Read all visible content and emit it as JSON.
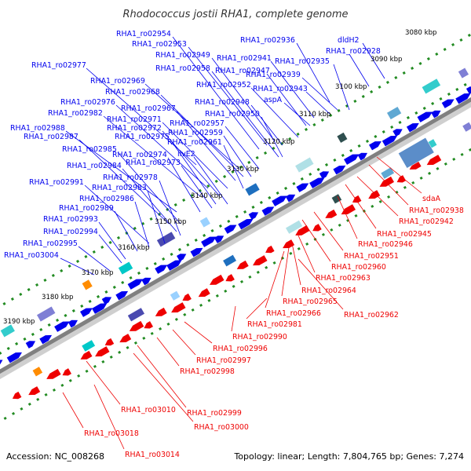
{
  "title": "Rhodococcus jostii RHA1, complete genome",
  "footer": {
    "accession": "Accession: NC_008268",
    "summary": "Topology: linear; Length: 7,804,765 bp; Genes: 7,274"
  },
  "colors": {
    "forward": "#0000ee",
    "reverse": "#ee0000",
    "backbone": "#808080",
    "tickmark": "#228b22"
  },
  "tick_labels": [
    "3080 kbp",
    "3090 kbp",
    "3100 kbp",
    "3110 kbp",
    "3120 kbp",
    "3130 kbp",
    "3140 kbp",
    "3150 kbp",
    "3160 kbp",
    "3170 kbp",
    "3180 kbp",
    "3190 kbp"
  ],
  "forward_labels": [
    "RHA1_ro02954",
    "RHA1_ro02953",
    "RHA1_ro02949",
    "RHA1_ro02958",
    "RHA1_ro02977",
    "RHA1_ro02936",
    "dldH2",
    "RHA1_ro02928",
    "RHA1_ro02941",
    "RHA1_ro02935",
    "RHA1_ro02947",
    "RHA1_ro02939",
    "RHA1_ro02969",
    "RHA1_ro02952",
    "RHA1_ro02943",
    "RHA1_ro02968",
    "aspA",
    "RHA1_ro02976",
    "RHA1_ro02948",
    "RHA1_ro02967",
    "RHA1_ro02982",
    "RHA1_ro02950",
    "RHA1_ro02971",
    "RHA1_ro02988",
    "RHA1_ro02957",
    "RHA1_ro02972",
    "RHA1_ro02959",
    "RHA1_ro02987",
    "RHA1_ro02975",
    "RHA1_ro02961",
    "RHA1_ro02985",
    "ilvE2",
    "RHA1_ro02974",
    "RHA1_ro02984",
    "RHA1_ro02973",
    "RHA1_ro02978",
    "RHA1_ro02991",
    "RHA1_ro02983",
    "RHA1_ro02986",
    "RHA1_ro02989",
    "RHA1_ro02993",
    "RHA1_ro02994",
    "RHA1_ro02995",
    "RHA1_ro03004"
  ],
  "reverse_labels": [
    "sdaA",
    "RHA1_ro02938",
    "RHA1_ro02942",
    "RHA1_ro02945",
    "RHA1_ro02946",
    "RHA1_ro02951",
    "RHA1_ro02960",
    "RHA1_ro02963",
    "RHA1_ro02964",
    "RHA1_ro02965",
    "RHA1_ro02966",
    "RHA1_ro02962",
    "RHA1_ro02981",
    "RHA1_ro02990",
    "RHA1_ro02996",
    "RHA1_ro02997",
    "RHA1_ro02998",
    "RHA1_ro03010",
    "RHA1_ro02999",
    "RHA1_ro03000",
    "RHA1_ro03018",
    "RHA1_ro03014"
  ]
}
